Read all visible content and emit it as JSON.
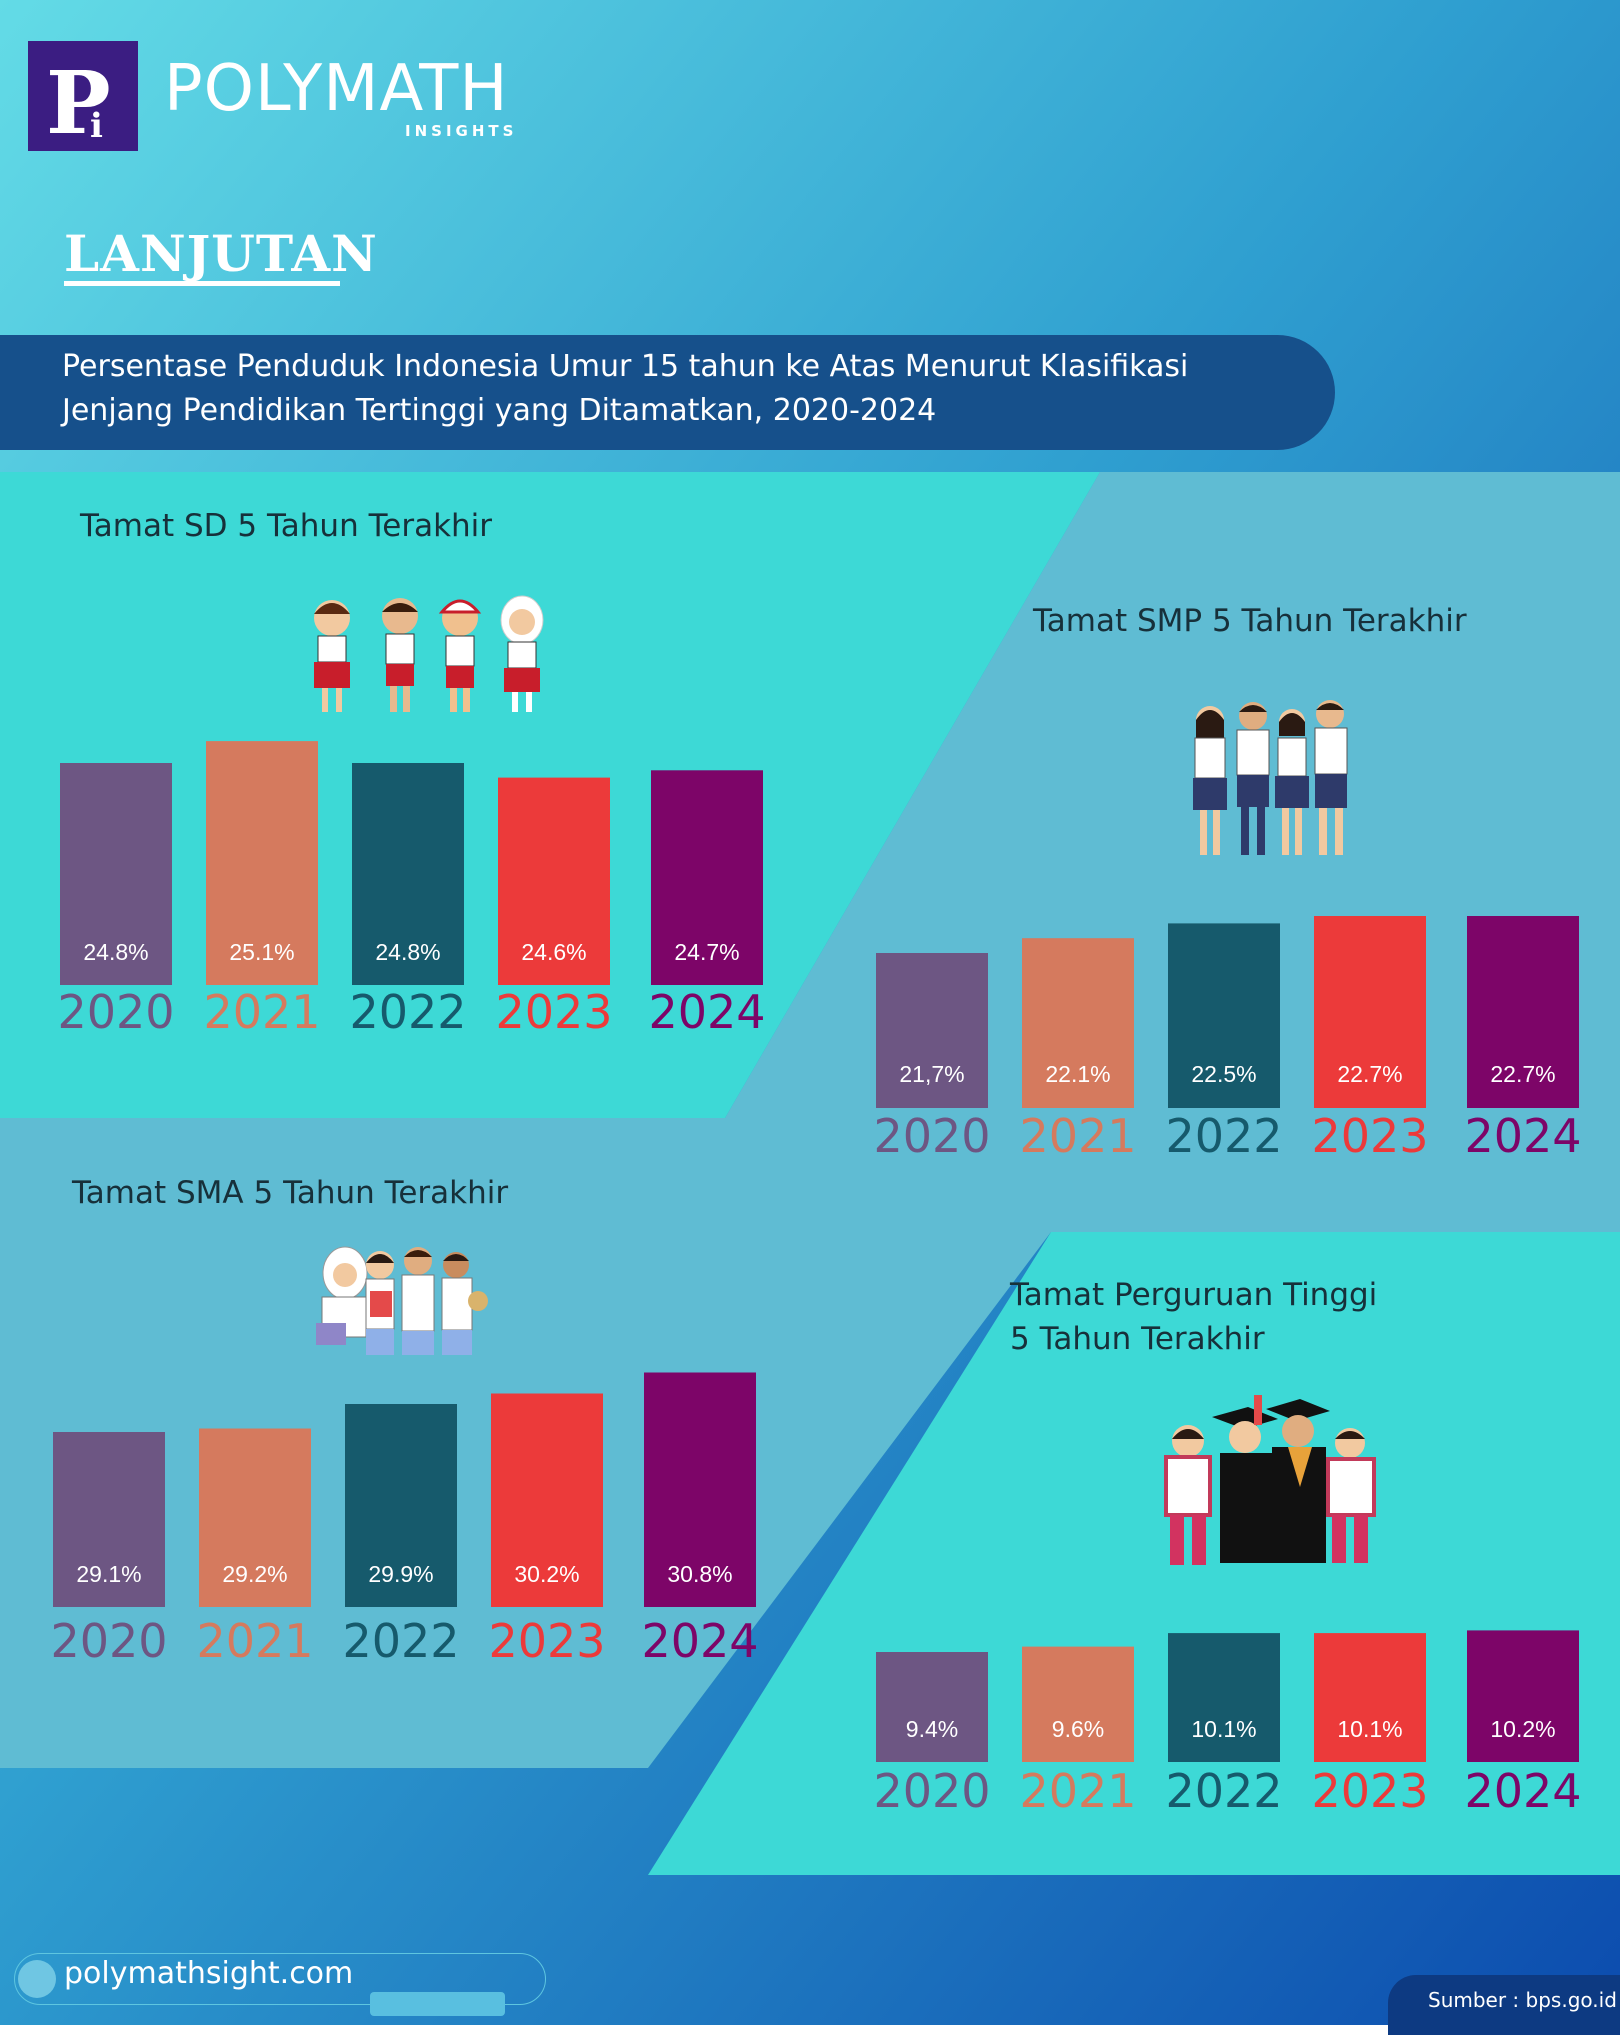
{
  "brand": {
    "name": "POLYMATH",
    "subtitle": "INSIGHTS",
    "logo_letters": "Pi"
  },
  "heading": "LANJUTAN",
  "banner": {
    "line1": "Persentase Penduduk Indonesia Umur 15 tahun ke Atas Menurut Klasifikasi",
    "line2": "Jenjang Pendidikan Tertinggi yang Ditamatkan, 2020-2024"
  },
  "colors": {
    "bg_top": "#5fd6e4",
    "bg_bottom": "#1457b3",
    "turquoise": "#3dd9d6",
    "steel": "#5fbcd3",
    "bars": [
      "#6d5683",
      "#d57a5e",
      "#165a6c",
      "#ec3a3a",
      "#7d0568"
    ]
  },
  "illustrations": [
    "elementary-students-icon",
    "junior-high-students-icon",
    "senior-high-students-icon",
    "graduates-icon"
  ],
  "chart_data": [
    {
      "type": "bar",
      "title": "Tamat SD 5 Tahun Terakhir",
      "categories": [
        "2020",
        "2021",
        "2022",
        "2023",
        "2024"
      ],
      "values": [
        24.8,
        25.1,
        24.8,
        24.6,
        24.7
      ],
      "labels": [
        "24.8%",
        "25.1%",
        "24.8%",
        "24.6%",
        "24.7%"
      ]
    },
    {
      "type": "bar",
      "title": "Tamat SMP 5 Tahun Terakhir",
      "categories": [
        "2020",
        "2021",
        "2022",
        "2023",
        "2024"
      ],
      "values": [
        21.7,
        22.1,
        22.5,
        22.7,
        22.7
      ],
      "labels": [
        "21,7%",
        "22.1%",
        "22.5%",
        "22.7%",
        "22.7%"
      ]
    },
    {
      "type": "bar",
      "title": "Tamat SMA 5 Tahun Terakhir",
      "categories": [
        "2020",
        "2021",
        "2022",
        "2023",
        "2024"
      ],
      "values": [
        29.1,
        29.2,
        29.9,
        30.2,
        30.8
      ],
      "labels": [
        "29.1%",
        "29.2%",
        "29.9%",
        "30.2%",
        "30.8%"
      ]
    },
    {
      "type": "bar",
      "title_line1": "Tamat Perguruan Tinggi",
      "title_line2": "5 Tahun Terakhir",
      "categories": [
        "2020",
        "2021",
        "2022",
        "2023",
        "2024"
      ],
      "values": [
        9.4,
        9.6,
        10.1,
        10.1,
        10.2
      ],
      "labels": [
        "9.4%",
        "9.6%",
        "10.1%",
        "10.1%",
        "10.2%"
      ]
    }
  ],
  "footer": {
    "url": "polymathsight.com",
    "source": "Sumber : bps.go.id"
  }
}
